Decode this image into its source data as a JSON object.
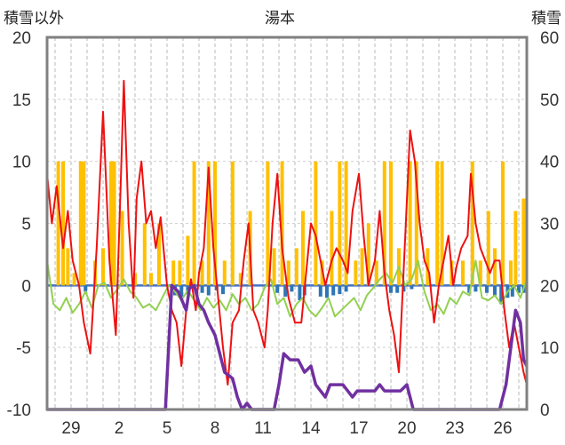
{
  "chart_data": {
    "type": "line",
    "title": "湯本",
    "y_left_label": "積雪以外",
    "y_right_label": "積雪",
    "y_left_range": [
      -10,
      20
    ],
    "y_right_range": [
      0,
      60
    ],
    "y_left_ticks": [
      "20",
      "15",
      "10",
      "5",
      "0",
      "-5",
      "-10"
    ],
    "y_right_ticks": [
      "60",
      "50",
      "40",
      "30",
      "20",
      "10",
      "0"
    ],
    "x_ticks": [
      "29",
      "2",
      "5",
      "8",
      "11",
      "14",
      "17",
      "20",
      "23",
      "26"
    ],
    "x_range": [
      27.5,
      57.5
    ],
    "x_tick_positions": [
      29,
      32,
      35,
      38,
      41,
      44,
      47,
      50,
      53,
      56
    ],
    "grid": true,
    "colors": {
      "temperature": "#ee1111",
      "temp_anomaly": "#92d050",
      "precip_yellow": "#ffc000",
      "precip_blue": "#2e75b6",
      "snow_depth": "#7030a0",
      "frame": "#808080"
    },
    "series": [
      {
        "kind": "temperature",
        "axis": "left",
        "points": [
          [
            27.5,
            9
          ],
          [
            27.8,
            5
          ],
          [
            28.1,
            8
          ],
          [
            28.5,
            3
          ],
          [
            28.8,
            6
          ],
          [
            29.1,
            2
          ],
          [
            29.5,
            0
          ],
          [
            29.8,
            -3
          ],
          [
            30.2,
            -5.5
          ],
          [
            30.6,
            3
          ],
          [
            31.0,
            14
          ],
          [
            31.4,
            2
          ],
          [
            31.8,
            -4
          ],
          [
            32.1,
            8
          ],
          [
            32.3,
            16.5
          ],
          [
            32.6,
            5
          ],
          [
            32.9,
            -1
          ],
          [
            33.1,
            7
          ],
          [
            33.4,
            10
          ],
          [
            33.7,
            5
          ],
          [
            34.0,
            6
          ],
          [
            34.3,
            3
          ],
          [
            34.6,
            5.5
          ],
          [
            35.0,
            0
          ],
          [
            35.3,
            -2
          ],
          [
            35.6,
            -3
          ],
          [
            35.9,
            -6.5
          ],
          [
            36.2,
            -2
          ],
          [
            36.5,
            0.5
          ],
          [
            36.8,
            -2
          ],
          [
            37.0,
            1
          ],
          [
            37.3,
            3
          ],
          [
            37.6,
            9.5
          ],
          [
            37.9,
            3
          ],
          [
            38.2,
            -1
          ],
          [
            38.5,
            -5
          ],
          [
            38.8,
            -8
          ],
          [
            39.1,
            -3
          ],
          [
            39.5,
            -2
          ],
          [
            39.8,
            2
          ],
          [
            40.1,
            5
          ],
          [
            40.4,
            -2
          ],
          [
            40.7,
            -3
          ],
          [
            41.1,
            -5
          ],
          [
            41.3,
            -2
          ],
          [
            41.6,
            5
          ],
          [
            41.9,
            9
          ],
          [
            42.2,
            3
          ],
          [
            42.6,
            -1
          ],
          [
            43.0,
            -3
          ],
          [
            43.4,
            -3
          ],
          [
            43.7,
            1
          ],
          [
            44.0,
            5
          ],
          [
            44.3,
            4
          ],
          [
            44.6,
            2
          ],
          [
            44.9,
            0
          ],
          [
            45.3,
            2
          ],
          [
            45.6,
            3
          ],
          [
            46.0,
            2
          ],
          [
            46.3,
            1
          ],
          [
            46.6,
            6
          ],
          [
            47.0,
            9
          ],
          [
            47.3,
            4
          ],
          [
            47.6,
            0
          ],
          [
            48.0,
            2
          ],
          [
            48.3,
            6
          ],
          [
            48.6,
            1
          ],
          [
            48.9,
            -2
          ],
          [
            49.2,
            -4
          ],
          [
            49.5,
            -7
          ],
          [
            49.9,
            4
          ],
          [
            50.2,
            12.5
          ],
          [
            50.5,
            10
          ],
          [
            50.8,
            5
          ],
          [
            51.1,
            2
          ],
          [
            51.4,
            1
          ],
          [
            51.7,
            -3
          ],
          [
            52.0,
            0
          ],
          [
            52.3,
            2
          ],
          [
            52.6,
            4
          ],
          [
            52.9,
            0
          ],
          [
            53.1,
            1.5
          ],
          [
            53.4,
            3
          ],
          [
            53.8,
            4
          ],
          [
            54.0,
            9
          ],
          [
            54.3,
            5
          ],
          [
            54.6,
            3
          ],
          [
            54.9,
            2
          ],
          [
            55.2,
            1
          ],
          [
            55.5,
            2
          ],
          [
            55.8,
            2
          ],
          [
            56.1,
            -2
          ],
          [
            56.4,
            -5
          ],
          [
            56.7,
            -3
          ],
          [
            57.0,
            -5
          ],
          [
            57.3,
            -7
          ],
          [
            57.5,
            -8
          ]
        ]
      },
      {
        "kind": "temp_anomaly",
        "axis": "left",
        "points": [
          [
            27.5,
            2
          ],
          [
            27.9,
            -1.5
          ],
          [
            28.3,
            -2
          ],
          [
            28.7,
            -1
          ],
          [
            29.1,
            -2.2
          ],
          [
            29.5,
            -1.5
          ],
          [
            29.9,
            -0.5
          ],
          [
            30.3,
            -1.8
          ],
          [
            30.7,
            0
          ],
          [
            31.1,
            0.2
          ],
          [
            31.5,
            -1
          ],
          [
            31.9,
            -0.3
          ],
          [
            32.3,
            0.5
          ],
          [
            32.7,
            -0.5
          ],
          [
            33.1,
            -1
          ],
          [
            33.5,
            -1.8
          ],
          [
            33.9,
            -1.5
          ],
          [
            34.3,
            -2
          ],
          [
            34.7,
            -1
          ],
          [
            35.1,
            0
          ],
          [
            35.5,
            -0.5
          ],
          [
            35.9,
            -1.2
          ],
          [
            36.3,
            -0.4
          ],
          [
            36.7,
            -1.2
          ],
          [
            37.1,
            -2
          ],
          [
            37.5,
            -1
          ],
          [
            37.9,
            -1.8
          ],
          [
            38.3,
            -1.2
          ],
          [
            38.7,
            -2
          ],
          [
            39.1,
            -0.7
          ],
          [
            39.5,
            -1.5
          ],
          [
            39.9,
            -1
          ],
          [
            40.3,
            -2
          ],
          [
            40.7,
            -1.5
          ],
          [
            41.1,
            -0.2
          ],
          [
            41.5,
            0.5
          ],
          [
            41.9,
            -1.5
          ],
          [
            42.3,
            -1
          ],
          [
            42.7,
            -2.5
          ],
          [
            43.1,
            -1.5
          ],
          [
            43.5,
            -1
          ],
          [
            43.9,
            -2
          ],
          [
            44.3,
            -2.5
          ],
          [
            44.7,
            -1.8
          ],
          [
            45.1,
            -1
          ],
          [
            45.5,
            -2.5
          ],
          [
            45.9,
            -2
          ],
          [
            46.3,
            -1.5
          ],
          [
            46.7,
            -1
          ],
          [
            47.1,
            -2
          ],
          [
            47.5,
            -0.8
          ],
          [
            47.9,
            -0.2
          ],
          [
            48.3,
            0.5
          ],
          [
            48.7,
            1
          ],
          [
            49.1,
            0.2
          ],
          [
            49.5,
            1.5
          ],
          [
            49.9,
            0
          ],
          [
            50.3,
            0.5
          ],
          [
            50.7,
            2
          ],
          [
            51.1,
            -0.5
          ],
          [
            51.5,
            -2
          ],
          [
            51.9,
            -1.5
          ],
          [
            52.3,
            -2.3
          ],
          [
            52.7,
            -1
          ],
          [
            53.1,
            -1.5
          ],
          [
            53.5,
            -0.5
          ],
          [
            53.9,
            -0.8
          ],
          [
            54.3,
            2
          ],
          [
            54.7,
            -1
          ],
          [
            55.1,
            -1.2
          ],
          [
            55.5,
            -0.8
          ],
          [
            55.9,
            -1.5
          ],
          [
            56.3,
            -0.5
          ],
          [
            56.7,
            0
          ],
          [
            57.1,
            -1
          ],
          [
            57.5,
            0.5
          ]
        ]
      },
      {
        "kind": "snow_depth",
        "axis": "right",
        "points": [
          [
            27.5,
            0
          ],
          [
            34.9,
            0
          ],
          [
            35.1,
            10
          ],
          [
            35.3,
            20
          ],
          [
            35.7,
            19
          ],
          [
            36.2,
            16
          ],
          [
            36.4,
            19.5
          ],
          [
            36.7,
            20
          ],
          [
            37.0,
            17
          ],
          [
            37.3,
            16
          ],
          [
            37.6,
            14
          ],
          [
            38.0,
            12
          ],
          [
            38.6,
            6
          ],
          [
            39.1,
            5
          ],
          [
            39.4,
            2
          ],
          [
            39.7,
            0
          ],
          [
            40.0,
            1
          ],
          [
            40.3,
            0
          ],
          [
            40.7,
            0
          ],
          [
            41.1,
            0
          ],
          [
            41.4,
            0
          ],
          [
            41.7,
            0
          ],
          [
            42.0,
            4
          ],
          [
            42.3,
            9
          ],
          [
            42.7,
            8
          ],
          [
            43.2,
            8
          ],
          [
            43.6,
            6
          ],
          [
            44.0,
            7
          ],
          [
            44.3,
            4
          ],
          [
            44.6,
            3
          ],
          [
            44.9,
            2
          ],
          [
            45.2,
            4
          ],
          [
            45.6,
            4
          ],
          [
            46.0,
            4
          ],
          [
            46.3,
            3
          ],
          [
            46.6,
            2
          ],
          [
            46.9,
            3
          ],
          [
            47.2,
            3
          ],
          [
            47.6,
            3
          ],
          [
            48.0,
            3
          ],
          [
            48.3,
            4
          ],
          [
            48.6,
            3
          ],
          [
            49.0,
            3
          ],
          [
            49.6,
            3
          ],
          [
            50.0,
            4
          ],
          [
            50.2,
            2
          ],
          [
            50.4,
            0
          ],
          [
            51.0,
            0
          ],
          [
            52.0,
            0
          ],
          [
            53.5,
            0
          ],
          [
            55.8,
            0
          ],
          [
            56.2,
            4
          ],
          [
            56.5,
            10
          ],
          [
            56.8,
            16
          ],
          [
            57.1,
            14
          ],
          [
            57.3,
            8
          ],
          [
            57.5,
            7
          ]
        ]
      }
    ],
    "precip_yellow_bars": [
      [
        28.2,
        10
      ],
      [
        28.5,
        10
      ],
      [
        28.8,
        3
      ],
      [
        29.2,
        1
      ],
      [
        29.6,
        10
      ],
      [
        29.8,
        10
      ],
      [
        30.5,
        2
      ],
      [
        31.0,
        3
      ],
      [
        31.5,
        10
      ],
      [
        31.7,
        10
      ],
      [
        32.2,
        6
      ],
      [
        33.0,
        1
      ],
      [
        33.6,
        5
      ],
      [
        34.0,
        1
      ],
      [
        34.5,
        5
      ],
      [
        35.4,
        2
      ],
      [
        35.8,
        2
      ],
      [
        36.3,
        4
      ],
      [
        36.7,
        10
      ],
      [
        37.2,
        2
      ],
      [
        37.6,
        10
      ],
      [
        38.0,
        10
      ],
      [
        38.6,
        2
      ],
      [
        39.1,
        10
      ],
      [
        39.6,
        1
      ],
      [
        40.2,
        6
      ],
      [
        41.3,
        10
      ],
      [
        41.7,
        3
      ],
      [
        42.2,
        10
      ],
      [
        42.6,
        2
      ],
      [
        43.1,
        3
      ],
      [
        43.5,
        6
      ],
      [
        44.3,
        10
      ],
      [
        44.7,
        2
      ],
      [
        45.3,
        6
      ],
      [
        45.8,
        10
      ],
      [
        46.2,
        10
      ],
      [
        46.8,
        2
      ],
      [
        47.2,
        3
      ],
      [
        47.6,
        5
      ],
      [
        48.1,
        2
      ],
      [
        48.6,
        10
      ],
      [
        49.0,
        10
      ],
      [
        49.5,
        3
      ],
      [
        50.2,
        10
      ],
      [
        50.6,
        10
      ],
      [
        51.3,
        3
      ],
      [
        51.9,
        10
      ],
      [
        52.2,
        10
      ],
      [
        52.8,
        2
      ],
      [
        53.5,
        2
      ],
      [
        54.1,
        10
      ],
      [
        54.6,
        2
      ],
      [
        55.1,
        6
      ],
      [
        55.5,
        3
      ],
      [
        56.0,
        10
      ],
      [
        56.5,
        2
      ],
      [
        56.8,
        6
      ],
      [
        57.3,
        7
      ]
    ],
    "precip_blue_bars": [
      [
        29.9,
        -0.5
      ],
      [
        35.5,
        -0.8
      ],
      [
        35.9,
        -0.9
      ],
      [
        36.3,
        -0.7
      ],
      [
        37.2,
        -0.6
      ],
      [
        37.6,
        -0.8
      ],
      [
        38.1,
        -0.4
      ],
      [
        38.5,
        -0.7
      ],
      [
        41.9,
        -0.6
      ],
      [
        42.4,
        -0.9
      ],
      [
        42.8,
        -0.5
      ],
      [
        43.3,
        -1.2
      ],
      [
        43.6,
        -0.8
      ],
      [
        44.6,
        -0.9
      ],
      [
        45.0,
        -1.0
      ],
      [
        45.4,
        -0.8
      ],
      [
        45.8,
        -0.7
      ],
      [
        46.2,
        -0.5
      ],
      [
        49.0,
        -0.6
      ],
      [
        49.4,
        -0.6
      ],
      [
        49.8,
        -0.5
      ],
      [
        50.3,
        -0.3
      ],
      [
        53.9,
        -0.6
      ],
      [
        54.3,
        -0.5
      ],
      [
        55.0,
        -0.6
      ],
      [
        55.5,
        -0.8
      ],
      [
        55.9,
        -1.5
      ],
      [
        56.3,
        -1.0
      ],
      [
        56.6,
        -0.9
      ],
      [
        57.0,
        -0.6
      ],
      [
        57.3,
        -0.6
      ]
    ]
  }
}
